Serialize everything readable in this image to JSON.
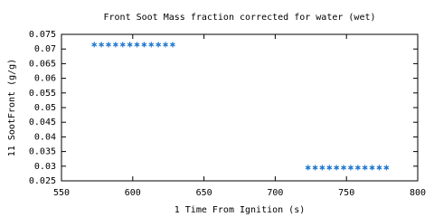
{
  "chart_data": {
    "type": "scatter",
    "title": "Front Soot Mass fraction corrected for water (wet)",
    "x_label": "1 Time From Ignition (s)",
    "y_label": "11 SootFront (g/g)",
    "series": [
      {
        "color": "#1f77d0",
        "x": [
          573,
          578,
          583,
          588,
          593,
          598,
          603,
          608,
          613,
          618,
          623,
          628,
          723,
          728,
          733,
          738,
          743,
          748,
          753,
          758,
          763,
          768,
          773,
          778
        ],
        "values": [
          0.0715,
          0.0715,
          0.0715,
          0.0715,
          0.0715,
          0.0715,
          0.0715,
          0.0715,
          0.0715,
          0.0715,
          0.0715,
          0.0715,
          0.0295,
          0.0295,
          0.0295,
          0.0295,
          0.0295,
          0.0295,
          0.0295,
          0.0295,
          0.0295,
          0.0295,
          0.0295,
          0.0295
        ]
      }
    ],
    "xlim": [
      550,
      800
    ],
    "xticks": [
      550,
      600,
      650,
      700,
      750,
      800
    ],
    "ylim": [
      0.025,
      0.075
    ],
    "yticks": [
      0.025,
      0.03,
      0.035,
      0.04,
      0.045,
      0.05,
      0.055,
      0.06,
      0.065,
      0.07,
      0.075
    ],
    "grid": false
  }
}
